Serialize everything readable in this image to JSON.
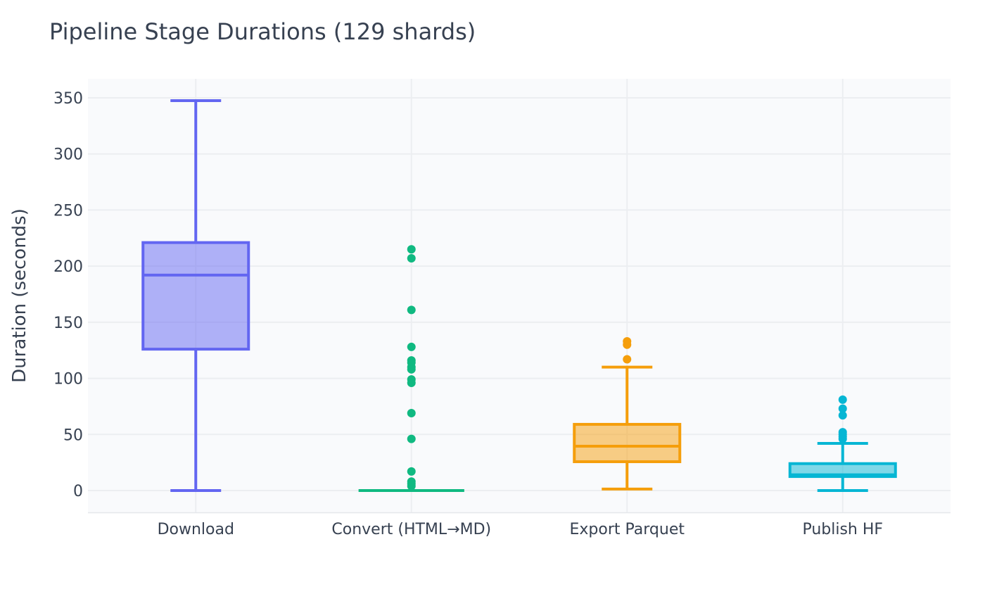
{
  "chart_data": {
    "type": "box",
    "title": "Pipeline Stage Durations (129 shards)",
    "xlabel": "",
    "ylabel": "Duration (seconds)",
    "ylim": [
      -20,
      367
    ],
    "yticks": [
      0,
      50,
      100,
      150,
      200,
      250,
      300,
      350
    ],
    "grid": true,
    "categories": [
      "Download",
      "Convert (HTML→MD)",
      "Export Parquet",
      "Publish HF"
    ],
    "series": [
      {
        "category": "Download",
        "color": "#6366f1",
        "fill": "rgba(99,102,241,0.5)",
        "min": 0,
        "q1": 126,
        "median": 192,
        "q3": 221,
        "max": 347.5,
        "outliers": []
      },
      {
        "category": "Convert (HTML→MD)",
        "color": "#10b981",
        "fill": "rgba(16,185,129,0.5)",
        "min": 0,
        "q1": 0,
        "median": 0,
        "q3": 0,
        "max": 0,
        "outliers": [
          215,
          207,
          161,
          128,
          116,
          114,
          110,
          108,
          99,
          96,
          69,
          46,
          17,
          8,
          6,
          4
        ]
      },
      {
        "category": "Export Parquet",
        "color": "#f59e0b",
        "fill": "rgba(245,158,11,0.5)",
        "min": 1.3,
        "q1": 25.7,
        "median": 39.5,
        "q3": 59,
        "max": 110,
        "outliers": [
          133,
          130,
          117
        ]
      },
      {
        "category": "Publish HF",
        "color": "#06b6d4",
        "fill": "rgba(6,182,212,0.5)",
        "min": 0,
        "q1": 12.5,
        "median": 14,
        "q3": 24,
        "max": 42,
        "outliers": [
          81,
          73,
          67,
          52,
          50,
          48,
          46
        ]
      }
    ]
  }
}
